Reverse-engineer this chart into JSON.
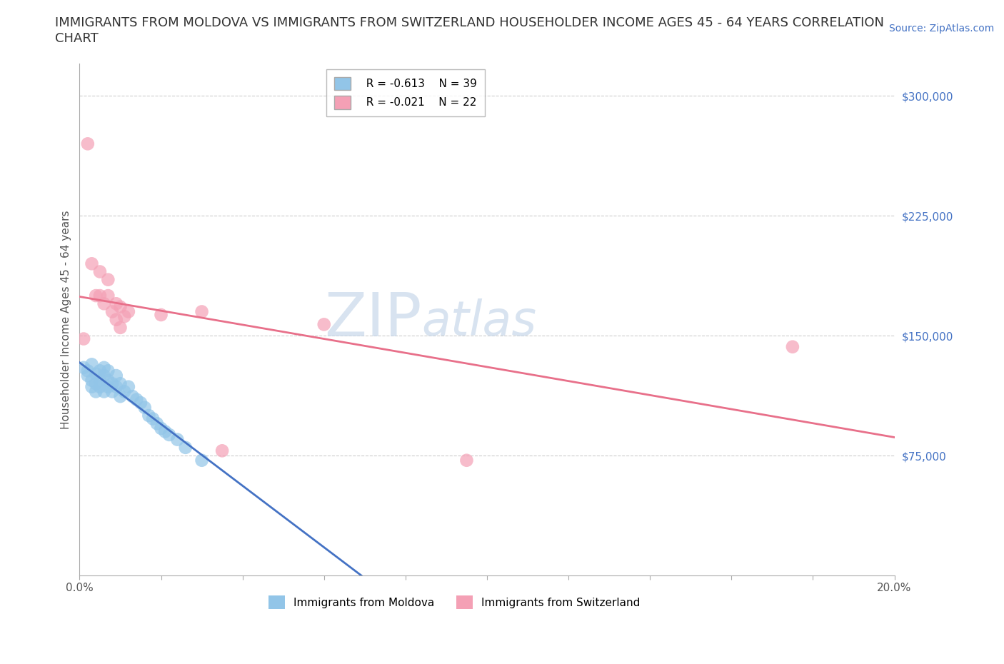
{
  "title_line1": "IMMIGRANTS FROM MOLDOVA VS IMMIGRANTS FROM SWITZERLAND HOUSEHOLDER INCOME AGES 45 - 64 YEARS CORRELATION",
  "title_line2": "CHART",
  "source_text": "Source: ZipAtlas.com",
  "ylabel": "Householder Income Ages 45 - 64 years",
  "xlim": [
    0.0,
    0.2
  ],
  "ylim": [
    0,
    320000
  ],
  "xticks": [
    0.0,
    0.02,
    0.04,
    0.06,
    0.08,
    0.1,
    0.12,
    0.14,
    0.16,
    0.18,
    0.2
  ],
  "xticklabels": [
    "0.0%",
    "",
    "",
    "",
    "",
    "",
    "",
    "",
    "",
    "",
    "20.0%"
  ],
  "yticks": [
    0,
    75000,
    150000,
    225000,
    300000
  ],
  "yticklabels": [
    "",
    "$75,000",
    "$150,000",
    "$225,000",
    "$300,000"
  ],
  "moldova_label": "Immigrants from Moldova",
  "switzerland_label": "Immigrants from Switzerland",
  "moldova_R": "R = -0.613",
  "moldova_N": "N = 39",
  "switzerland_R": "R = -0.021",
  "switzerland_N": "N = 22",
  "moldova_color": "#92C5E8",
  "switzerland_color": "#F4A0B5",
  "moldova_line_color": "#4472C4",
  "switzerland_line_color": "#E8708A",
  "watermark_zip": "ZIP",
  "watermark_atlas": "atlas",
  "moldova_x": [
    0.001,
    0.002,
    0.002,
    0.003,
    0.003,
    0.003,
    0.004,
    0.004,
    0.004,
    0.005,
    0.005,
    0.005,
    0.006,
    0.006,
    0.006,
    0.007,
    0.007,
    0.007,
    0.008,
    0.008,
    0.009,
    0.009,
    0.01,
    0.01,
    0.011,
    0.012,
    0.013,
    0.014,
    0.015,
    0.016,
    0.017,
    0.018,
    0.019,
    0.02,
    0.021,
    0.022,
    0.024,
    0.026,
    0.03
  ],
  "moldova_y": [
    130000,
    125000,
    128000,
    122000,
    118000,
    132000,
    120000,
    126000,
    115000,
    118000,
    128000,
    122000,
    115000,
    125000,
    130000,
    118000,
    122000,
    128000,
    120000,
    115000,
    118000,
    125000,
    112000,
    120000,
    115000,
    118000,
    112000,
    110000,
    108000,
    105000,
    100000,
    98000,
    95000,
    92000,
    90000,
    88000,
    85000,
    80000,
    72000
  ],
  "switzerland_x": [
    0.001,
    0.002,
    0.003,
    0.004,
    0.005,
    0.005,
    0.006,
    0.007,
    0.007,
    0.008,
    0.009,
    0.009,
    0.01,
    0.01,
    0.011,
    0.012,
    0.02,
    0.03,
    0.035,
    0.06,
    0.095,
    0.175
  ],
  "switzerland_y": [
    148000,
    270000,
    195000,
    175000,
    190000,
    175000,
    170000,
    185000,
    175000,
    165000,
    170000,
    160000,
    155000,
    168000,
    162000,
    165000,
    163000,
    165000,
    78000,
    157000,
    72000,
    143000
  ],
  "grid_color": "#cccccc",
  "background_color": "#ffffff",
  "title_fontsize": 13,
  "axis_label_fontsize": 11,
  "tick_fontsize": 11,
  "legend_fontsize": 11,
  "source_fontsize": 10
}
